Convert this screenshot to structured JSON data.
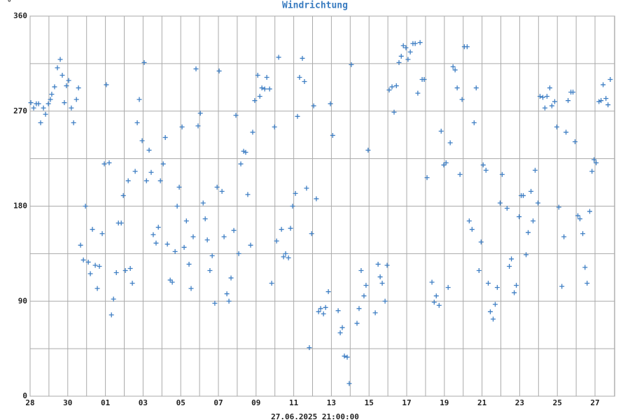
{
  "chart_data": {
    "type": "scatter",
    "title": "Windrichtung",
    "y_unit": "°",
    "xlabel": "27.06.2025 21:00:00",
    "color": "#3f7fc4",
    "grid": true,
    "xlim": [
      0,
      31.04
    ],
    "ylim": [
      0,
      360
    ],
    "xticks": [
      {
        "value": 0,
        "label": "28"
      },
      {
        "value": 2,
        "label": "30"
      },
      {
        "value": 4,
        "label": "01"
      },
      {
        "value": 6,
        "label": "03"
      },
      {
        "value": 8,
        "label": "05"
      },
      {
        "value": 10,
        "label": "07"
      },
      {
        "value": 12,
        "label": "09"
      },
      {
        "value": 14,
        "label": "11"
      },
      {
        "value": 16,
        "label": "13"
      },
      {
        "value": 18,
        "label": "15"
      },
      {
        "value": 20,
        "label": "17"
      },
      {
        "value": 22,
        "label": "19"
      },
      {
        "value": 24,
        "label": "21"
      },
      {
        "value": 26,
        "label": "23"
      },
      {
        "value": 28,
        "label": "25"
      },
      {
        "value": 30,
        "label": "27"
      }
    ],
    "minor_xticks": [
      1,
      3,
      5,
      7,
      9,
      11,
      13,
      15,
      17,
      19,
      21,
      23,
      25,
      27,
      29
    ],
    "yticks": [
      0,
      90,
      180,
      270,
      360
    ],
    "minor_yticks": [
      45,
      135,
      225,
      315
    ],
    "x": [
      0.04,
      0.19,
      0.33,
      0.45,
      0.56,
      0.71,
      0.82,
      0.97,
      1.08,
      1.15,
      1.3,
      1.45,
      1.6,
      1.71,
      1.82,
      1.93,
      2.05,
      2.19,
      2.31,
      2.46,
      2.57,
      2.68,
      2.83,
      2.94,
      3.09,
      3.2,
      3.31,
      3.46,
      3.57,
      3.68,
      3.83,
      3.94,
      4.05,
      4.2,
      4.32,
      4.43,
      4.58,
      4.69,
      4.84,
      4.95,
      5.06,
      5.21,
      5.32,
      5.43,
      5.58,
      5.69,
      5.8,
      5.95,
      6.06,
      6.18,
      6.32,
      6.43,
      6.54,
      6.69,
      6.81,
      6.92,
      7.07,
      7.18,
      7.29,
      7.44,
      7.55,
      7.7,
      7.81,
      7.92,
      8.07,
      8.18,
      8.3,
      8.44,
      8.55,
      8.66,
      8.81,
      8.92,
      9.04,
      9.19,
      9.3,
      9.41,
      9.55,
      9.67,
      9.81,
      9.93,
      10.04,
      10.19,
      10.3,
      10.45,
      10.56,
      10.67,
      10.82,
      10.93,
      11.08,
      11.19,
      11.34,
      11.45,
      11.56,
      11.71,
      11.82,
      11.93,
      12.09,
      12.2,
      12.31,
      12.46,
      12.57,
      12.72,
      12.83,
      12.98,
      13.09,
      13.2,
      13.35,
      13.46,
      13.57,
      13.72,
      13.83,
      13.94,
      14.09,
      14.2,
      14.31,
      14.46,
      14.57,
      14.68,
      14.83,
      14.95,
      15.06,
      15.2,
      15.32,
      15.43,
      15.58,
      15.69,
      15.84,
      15.95,
      16.07,
      16.36,
      16.47,
      16.58,
      16.69,
      16.84,
      16.95,
      17.06,
      17.36,
      17.47,
      17.58,
      17.73,
      17.84,
      17.95,
      18.33,
      18.48,
      18.59,
      18.7,
      18.85,
      18.96,
      19.07,
      19.22,
      19.33,
      19.45,
      19.59,
      19.71,
      19.82,
      19.96,
      20.07,
      20.19,
      20.33,
      20.45,
      20.59,
      20.71,
      20.82,
      20.93,
      21.08,
      21.34,
      21.46,
      21.57,
      21.72,
      21.83,
      21.97,
      22.09,
      22.2,
      22.31,
      22.46,
      22.57,
      22.68,
      22.83,
      22.94,
      23.06,
      23.21,
      23.32,
      23.47,
      23.58,
      23.69,
      23.84,
      23.95,
      24.06,
      24.21,
      24.33,
      24.44,
      24.59,
      24.7,
      24.81,
      24.96,
      25.07,
      25.33,
      25.45,
      25.56,
      25.71,
      25.82,
      25.97,
      26.08,
      26.19,
      26.34,
      26.45,
      26.6,
      26.71,
      26.82,
      26.97,
      27.08,
      27.23,
      27.34,
      27.45,
      27.6,
      27.71,
      27.86,
      27.97,
      28.08,
      28.24,
      28.35,
      28.46,
      28.57,
      28.72,
      28.83,
      28.94,
      29.09,
      29.2,
      29.35,
      29.47,
      29.58,
      29.72,
      29.84,
      29.95,
      30.06,
      30.21,
      30.32,
      30.43,
      30.58,
      30.69,
      30.81
    ],
    "values": [
      278,
      273,
      277,
      277,
      259,
      273,
      267,
      277,
      281,
      286,
      293,
      311,
      319,
      304,
      278,
      294,
      299,
      273,
      259,
      281,
      292,
      143,
      129,
      180,
      127,
      116,
      158,
      124,
      102,
      123,
      154,
      220,
      295,
      221,
      77,
      92,
      117,
      164,
      164,
      190,
      119,
      204,
      121,
      107,
      213,
      259,
      281,
      242,
      316,
      204,
      233,
      212,
      153,
      145,
      160,
      204,
      220,
      245,
      144,
      110,
      108,
      137,
      180,
      198,
      255,
      141,
      166,
      125,
      102,
      151,
      310,
      256,
      268,
      183,
      168,
      148,
      119,
      133,
      88,
      198,
      308,
      194,
      151,
      97,
      90,
      112,
      157,
      266,
      135,
      220,
      232,
      231,
      191,
      143,
      250,
      280,
      304,
      284,
      292,
      291,
      302,
      291,
      107,
      255,
      147,
      321,
      158,
      132,
      135,
      131,
      159,
      180,
      192,
      265,
      302,
      320,
      298,
      197,
      46,
      154,
      275,
      187,
      80,
      83,
      78,
      84,
      99,
      277,
      247,
      81,
      60,
      65,
      38,
      37,
      12,
      314,
      69,
      83,
      119,
      95,
      105,
      233,
      79,
      125,
      113,
      107,
      90,
      124,
      290,
      293,
      269,
      294,
      316,
      322,
      332,
      330,
      319,
      326,
      334,
      334,
      287,
      335,
      300,
      300,
      207,
      108,
      89,
      95,
      86,
      251,
      219,
      221,
      103,
      240,
      312,
      309,
      292,
      210,
      281,
      331,
      331,
      166,
      158,
      259,
      292,
      119,
      146,
      219,
      214,
      107,
      80,
      73,
      87,
      103,
      183,
      210,
      178,
      123,
      130,
      98,
      105,
      170,
      190,
      190,
      134,
      155,
      194,
      166,
      214,
      183,
      284,
      283,
      273,
      284,
      292,
      275,
      279,
      255,
      179,
      104,
      151,
      250,
      280,
      288,
      288,
      241,
      171,
      168,
      154,
      122,
      107,
      175,
      213,
      224,
      221,
      279,
      280,
      295,
      282,
      276,
      300
    ]
  }
}
